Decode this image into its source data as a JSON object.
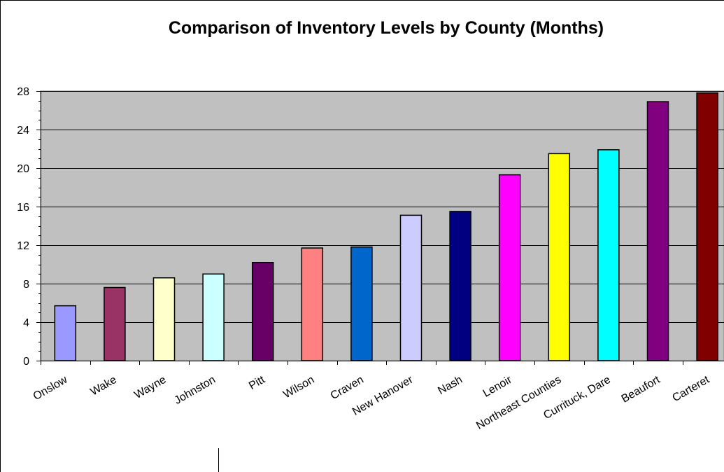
{
  "chart_data": {
    "type": "bar",
    "title": "Comparison of Inventory Levels by County (Months)",
    "xlabel": "",
    "ylabel": "",
    "ylim": [
      0,
      28
    ],
    "yticks": [
      0,
      4,
      8,
      12,
      16,
      20,
      24,
      28
    ],
    "grid": true,
    "legend": "none",
    "plot_background": "#c0c0c0",
    "categories": [
      "Onslow",
      "Wake",
      "Wayne",
      "Johnston",
      "Pitt",
      "Wilson",
      "Craven",
      "New Hanover",
      "Nash",
      "Lenoir",
      "Northeast Counties",
      "Currituck, Dare",
      "Beaufort",
      "Carteret"
    ],
    "values": [
      5.7,
      7.6,
      8.6,
      9.0,
      10.2,
      11.7,
      11.8,
      15.1,
      15.5,
      19.3,
      21.5,
      21.9,
      26.9,
      27.8
    ],
    "colors": [
      "#9999ff",
      "#993366",
      "#ffffcc",
      "#ccffff",
      "#660066",
      "#ff8080",
      "#0066cc",
      "#ccccff",
      "#000080",
      "#ff00ff",
      "#ffff00",
      "#00ffff",
      "#800080",
      "#800000"
    ]
  }
}
